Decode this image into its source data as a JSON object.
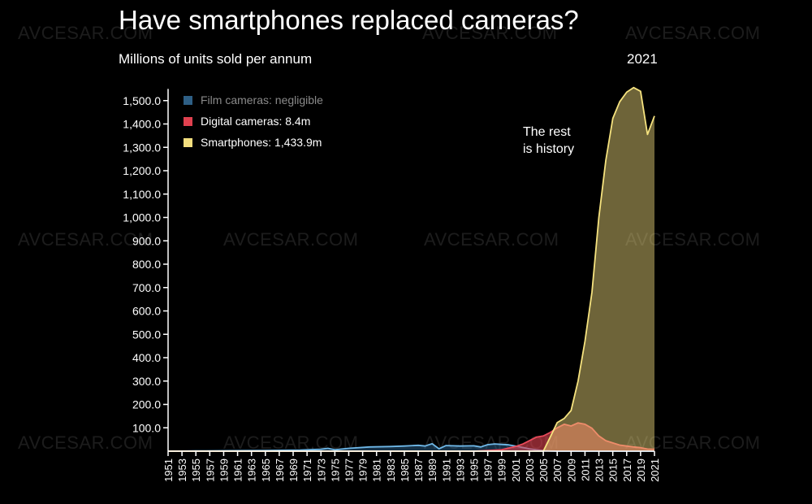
{
  "watermark": "AVCESAR.COM",
  "chart_data": {
    "type": "area",
    "title": "Have smartphones replaced cameras?",
    "ylabel": "Millions of units sold per annum",
    "current_year": "2021",
    "annotation": [
      "The rest",
      "is history"
    ],
    "ylim": [
      0,
      1550
    ],
    "yticks": [
      "100.0",
      "200.0",
      "300.0",
      "400.0",
      "500.0",
      "600.0",
      "700.0",
      "800.0",
      "900.0",
      "1,000.0",
      "1,100.0",
      "1,200.0",
      "1,300.0",
      "1,400.0",
      "1,500.0"
    ],
    "xlim": [
      1951,
      2021
    ],
    "xticks": [
      "1951",
      "1953",
      "1955",
      "1957",
      "1959",
      "1961",
      "1963",
      "1965",
      "1967",
      "1969",
      "1971",
      "1973",
      "1975",
      "1977",
      "1979",
      "1981",
      "1983",
      "1985",
      "1987",
      "1989",
      "1991",
      "1993",
      "1995",
      "1997",
      "1999",
      "2001",
      "2003",
      "2005",
      "2007",
      "2009",
      "2011",
      "2013",
      "2015",
      "2017",
      "2019",
      "2021"
    ],
    "legend": [
      {
        "label": "Film cameras: negligible",
        "color": "#2e5f85",
        "text_color": "#8a8a8a"
      },
      {
        "label": "Digital cameras: 8.4m",
        "color": "#e0414f",
        "text_color": "#ffffff"
      },
      {
        "label": "Smartphones: 1,433.9m",
        "color": "#f3de7e",
        "text_color": "#ffffff"
      }
    ],
    "series": [
      {
        "name": "Film cameras",
        "fill": "#2f6a9a",
        "fill_opacity": 0.45,
        "stroke": "#6fb8e8",
        "points": [
          [
            1951,
            0
          ],
          [
            1955,
            1
          ],
          [
            1960,
            2
          ],
          [
            1965,
            3
          ],
          [
            1970,
            5
          ],
          [
            1973,
            8
          ],
          [
            1974,
            12
          ],
          [
            1975,
            6
          ],
          [
            1977,
            12
          ],
          [
            1980,
            18
          ],
          [
            1983,
            20
          ],
          [
            1985,
            22
          ],
          [
            1987,
            25
          ],
          [
            1988,
            22
          ],
          [
            1989,
            32
          ],
          [
            1990,
            10
          ],
          [
            1991,
            24
          ],
          [
            1993,
            22
          ],
          [
            1995,
            23
          ],
          [
            1996,
            18
          ],
          [
            1997,
            28
          ],
          [
            1998,
            31
          ],
          [
            1999,
            29
          ],
          [
            2000,
            27
          ],
          [
            2001,
            22
          ],
          [
            2002,
            16
          ],
          [
            2003,
            10
          ],
          [
            2004,
            6
          ],
          [
            2005,
            3
          ],
          [
            2006,
            1
          ],
          [
            2007,
            0
          ],
          [
            2021,
            0
          ]
        ]
      },
      {
        "name": "Digital cameras",
        "fill": "#e0414f",
        "fill_opacity": 0.6,
        "stroke": "#e94a5a",
        "points": [
          [
            1951,
            0
          ],
          [
            1995,
            0
          ],
          [
            1997,
            3
          ],
          [
            1999,
            6
          ],
          [
            2001,
            20
          ],
          [
            2002,
            30
          ],
          [
            2003,
            45
          ],
          [
            2004,
            60
          ],
          [
            2005,
            65
          ],
          [
            2006,
            80
          ],
          [
            2007,
            100
          ],
          [
            2008,
            115
          ],
          [
            2009,
            108
          ],
          [
            2010,
            121
          ],
          [
            2011,
            115
          ],
          [
            2012,
            98
          ],
          [
            2013,
            65
          ],
          [
            2014,
            45
          ],
          [
            2015,
            35
          ],
          [
            2016,
            26
          ],
          [
            2017,
            22
          ],
          [
            2018,
            18
          ],
          [
            2019,
            15
          ],
          [
            2020,
            9
          ],
          [
            2021,
            8.4
          ]
        ]
      },
      {
        "name": "Smartphones",
        "fill": "#f3de7e",
        "fill_opacity": 0.45,
        "stroke": "#f6e37f",
        "points": [
          [
            1951,
            0
          ],
          [
            2005,
            0
          ],
          [
            2006,
            60
          ],
          [
            2007,
            122
          ],
          [
            2008,
            140
          ],
          [
            2009,
            174
          ],
          [
            2010,
            300
          ],
          [
            2011,
            470
          ],
          [
            2012,
            680
          ],
          [
            2013,
            1000
          ],
          [
            2014,
            1245
          ],
          [
            2015,
            1424
          ],
          [
            2016,
            1495
          ],
          [
            2017,
            1536
          ],
          [
            2018,
            1556
          ],
          [
            2019,
            1540
          ],
          [
            2020,
            1355
          ],
          [
            2021,
            1434
          ]
        ]
      }
    ]
  }
}
